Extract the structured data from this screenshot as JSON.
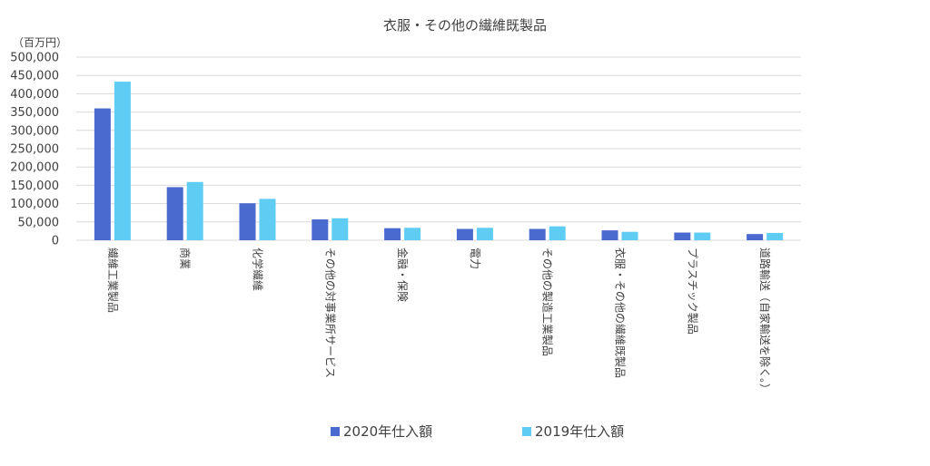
{
  "chart_data": {
    "type": "bar",
    "title": "衣服・その他の繊維既製品",
    "unit_label": "（百万円）",
    "ylim": [
      0,
      500000
    ],
    "yticks": [
      "0",
      "50,000",
      "100,000",
      "150,000",
      "200,000",
      "250,000",
      "300,000",
      "350,000",
      "400,000",
      "450,000",
      "500,000"
    ],
    "ytick_values": [
      0,
      50000,
      100000,
      150000,
      200000,
      250000,
      300000,
      350000,
      400000,
      450000,
      500000
    ],
    "grid": true,
    "legend_position": "bottom",
    "categories": [
      "繊維工業製品",
      "商業",
      "化学繊維",
      "その他の対事業所サービス",
      "金融・保険",
      "電力",
      "その他の製造工業製品",
      "衣服・その他の繊維既製品",
      "プラスチック製品",
      "道路輸送（自家輸送を除く。）"
    ],
    "series": [
      {
        "name": "2020年仕入額",
        "color": "#4a6ad0",
        "values": [
          360000,
          145000,
          101000,
          57000,
          33000,
          31000,
          31000,
          27000,
          21000,
          17000
        ]
      },
      {
        "name": "2019年仕入額",
        "color": "#5fcdf3",
        "values": [
          433000,
          159000,
          113000,
          60000,
          34000,
          34000,
          38000,
          23000,
          21000,
          20000
        ]
      }
    ]
  }
}
